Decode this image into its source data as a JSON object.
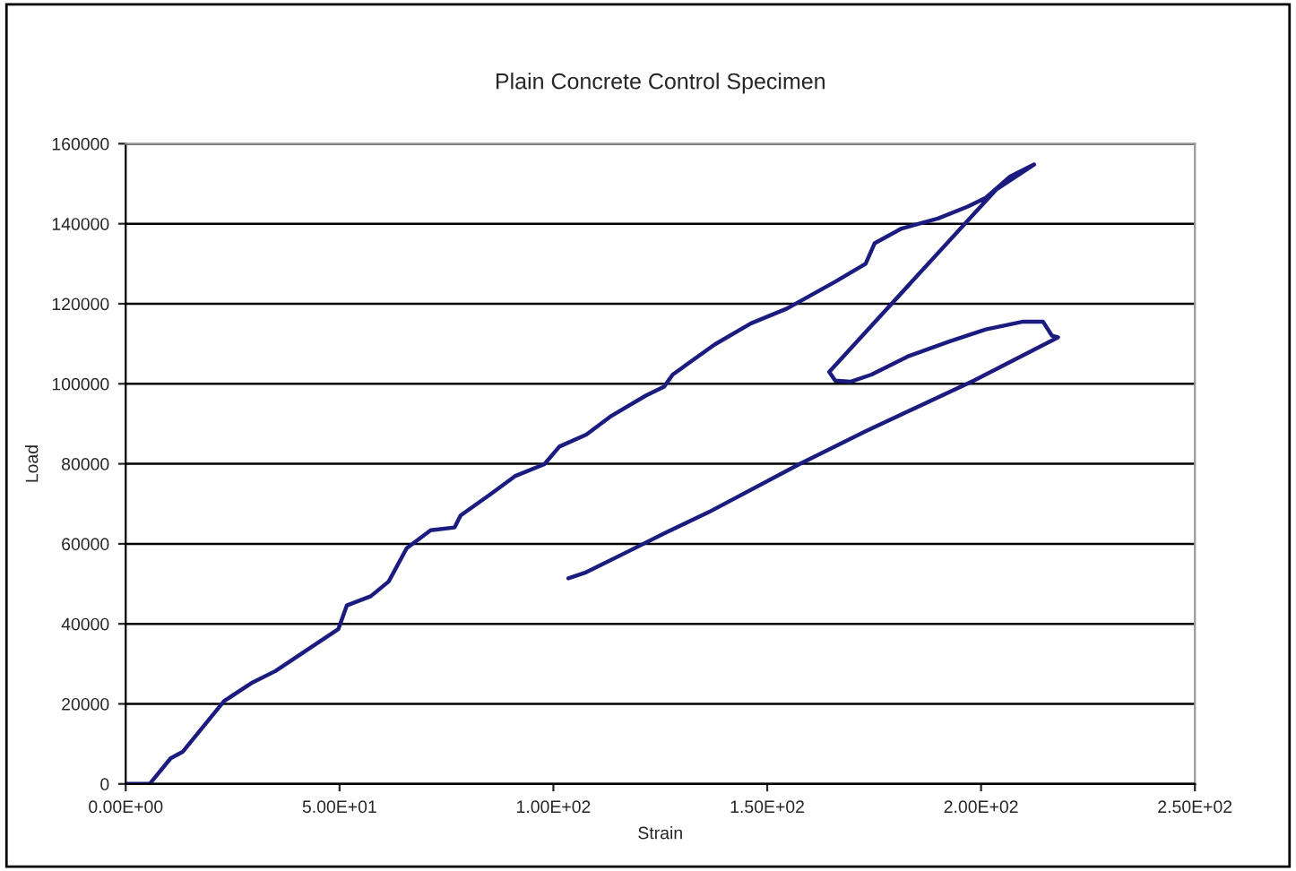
{
  "chart_data": {
    "type": "line",
    "title": "Plain Concrete Control Specimen",
    "xlabel": "Strain",
    "ylabel": "Load",
    "series": [
      {
        "color": "#1c1c80",
        "x": [
          0,
          5.6,
          10.5,
          13.3,
          23,
          29.4,
          35,
          43.4,
          49.7,
          51.7,
          57.3,
          61.5,
          65.7,
          71.3,
          76.9,
          78.3,
          85.3,
          91,
          97.9,
          101.4,
          107.7,
          113.3,
          121.7,
          125.9,
          127.9,
          137.7,
          146.2,
          154.6,
          165.9,
          173,
          175.1,
          181.4,
          189.9,
          196.9,
          201.1,
          206.8,
          212.4,
          203.5,
          164.5,
          165.9,
          169.4,
          174.4,
          182.8,
          192.7,
          201.1,
          209.6,
          214.5,
          216.6,
          218,
          198.3,
          172.9,
          157.5,
          136.3,
          125.9,
          117.5,
          107.7,
          103.5
        ],
        "values": [
          0,
          0,
          6400,
          8000,
          20700,
          25200,
          28200,
          34200,
          38650,
          44600,
          46900,
          50600,
          58900,
          63400,
          64100,
          67100,
          72400,
          76900,
          79900,
          84300,
          87300,
          91800,
          97100,
          99300,
          102300,
          109800,
          115100,
          118800,
          125500,
          130000,
          135100,
          138800,
          141300,
          144300,
          146500,
          151800,
          154800,
          148500,
          103000,
          100800,
          100500,
          102300,
          106800,
          110600,
          113600,
          115500,
          115500,
          112000,
          111600,
          100800,
          88100,
          79900,
          67900,
          62600,
          58100,
          52900,
          51400
        ]
      }
    ],
    "xlim": [
      0,
      250
    ],
    "xticks": [
      {
        "value": 0,
        "label": "0.00E+00"
      },
      {
        "value": 50,
        "label": "5.00E+01"
      },
      {
        "value": 100,
        "label": "1.00E+02"
      },
      {
        "value": 150,
        "label": "1.50E+02"
      },
      {
        "value": 200,
        "label": "2.00E+02"
      },
      {
        "value": 250,
        "label": "2.50E+02"
      }
    ],
    "ylim": [
      0,
      160000
    ],
    "yticks": [
      0,
      20000,
      40000,
      60000,
      80000,
      100000,
      120000,
      140000,
      160000
    ],
    "grid": "y",
    "marker": "none",
    "line_style": "solid",
    "legend": false
  }
}
